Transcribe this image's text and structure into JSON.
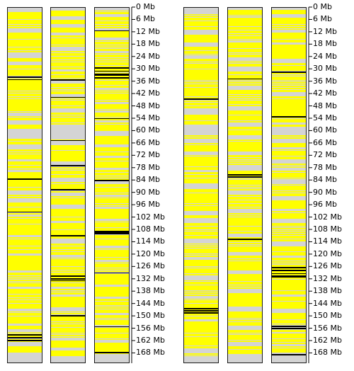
{
  "scale": {
    "unit": "Mb",
    "max": 173,
    "labels": [
      "0 Mb",
      "6 Mb",
      "12 Mb",
      "18 Mb",
      "24 Mb",
      "30 Mb",
      "36 Mb",
      "42 Mb",
      "48 Mb",
      "54 Mb",
      "60 Mb",
      "66 Mb",
      "72 Mb",
      "78 Mb",
      "84 Mb",
      "90 Mb",
      "96 Mb",
      "102 Mb",
      "108 Mb",
      "114 Mb",
      "120 Mb",
      "126 Mb",
      "132 Mb",
      "138 Mb",
      "144 Mb",
      "150 Mb",
      "156 Mb",
      "162 Mb",
      "168 Mb"
    ],
    "positions_mb": [
      0,
      6,
      12,
      18,
      24,
      30,
      36,
      42,
      48,
      54,
      60,
      66,
      72,
      78,
      84,
      90,
      96,
      102,
      108,
      114,
      120,
      126,
      132,
      138,
      144,
      150,
      156,
      162,
      168
    ]
  },
  "colors": {
    "present": "#ffff00",
    "absent": "#d4d4d4",
    "marker": "#000000",
    "border": "#1a1a1a"
  },
  "groups": [
    {
      "tracks": [
        {
          "gray": [
            [
              0,
              2
            ],
            [
              10,
              12
            ],
            [
              22,
              24.5
            ],
            [
              26.5,
              28
            ],
            [
              51,
              53
            ],
            [
              55,
              57
            ],
            [
              59,
              64
            ],
            [
              67,
              69
            ],
            [
              74,
              75
            ],
            [
              79,
              80
            ],
            [
              89,
              91
            ],
            [
              93,
              95
            ],
            [
              101,
              102
            ],
            [
              111,
              112
            ],
            [
              120,
              121
            ],
            [
              128,
              129
            ],
            [
              136,
              137
            ],
            [
              147,
              148
            ],
            [
              154,
              155
            ],
            [
              157,
              158
            ],
            [
              163,
              165
            ],
            [
              168,
              173
            ]
          ],
          "black": [
            [
              33.5,
              34
            ],
            [
              34.8,
              35.3
            ],
            [
              83.3,
              84
            ],
            [
              99.3,
              99.8
            ],
            [
              159.2,
              159.6
            ],
            [
              160.5,
              161.3
            ],
            [
              162,
              162.4
            ]
          ]
        },
        {
          "gray": [
            [
              0,
              1.5
            ],
            [
              4,
              5.5
            ],
            [
              8,
              9.5
            ],
            [
              12,
              13.5
            ],
            [
              19,
              21
            ],
            [
              30,
              31
            ],
            [
              35,
              37
            ],
            [
              42,
              44
            ],
            [
              49,
              51
            ],
            [
              57,
              64
            ],
            [
              65,
              67
            ],
            [
              75,
              77
            ],
            [
              83,
              85
            ],
            [
              90,
              92
            ],
            [
              96,
              98
            ],
            [
              104,
              105
            ],
            [
              113,
              115
            ],
            [
              121,
              122
            ],
            [
              136,
              137
            ],
            [
              140,
              141
            ],
            [
              146,
              148
            ],
            [
              161,
              162
            ],
            [
              166,
              167
            ],
            [
              170,
              173
            ]
          ],
          "black": [
            [
              35,
              35.4
            ],
            [
              43.5,
              44
            ],
            [
              64.5,
              65
            ],
            [
              76.8,
              77.4
            ],
            [
              88.5,
              89
            ],
            [
              111,
              111.6
            ],
            [
              130.5,
              131.2
            ],
            [
              131.8,
              132.5
            ],
            [
              132.8,
              133.4
            ],
            [
              150,
              150.6
            ]
          ]
        },
        {
          "gray": [
            [
              0,
              1
            ],
            [
              3,
              4.5
            ],
            [
              10,
              11.5
            ],
            [
              15,
              16
            ],
            [
              21,
              22
            ],
            [
              39,
              40
            ],
            [
              46,
              47
            ],
            [
              50,
              51
            ],
            [
              55,
              56
            ],
            [
              60,
              62
            ],
            [
              67,
              68
            ],
            [
              72,
              73
            ],
            [
              78,
              79
            ],
            [
              85,
              86
            ],
            [
              91,
              92
            ],
            [
              97,
              98
            ],
            [
              103,
              104
            ],
            [
              110,
              111
            ],
            [
              116,
              117
            ],
            [
              123,
              124
            ],
            [
              135,
              136
            ],
            [
              141,
              142
            ],
            [
              149,
              150
            ],
            [
              155,
              156
            ],
            [
              162,
              163
            ],
            [
              169,
              173
            ]
          ],
          "black": [
            [
              11,
              11.4
            ],
            [
              29,
              29.6
            ],
            [
              30.6,
              31.2
            ],
            [
              32,
              33
            ],
            [
              34,
              34.6
            ],
            [
              53.8,
              54.2
            ],
            [
              84,
              84.5
            ],
            [
              108.7,
              110.5
            ],
            [
              129,
              129.6
            ],
            [
              155.3,
              155.9
            ],
            [
              167.8,
              168.4
            ]
          ]
        }
      ]
    },
    {
      "tracks": [
        {
          "gray": [
            [
              0,
              3
            ],
            [
              11,
              13
            ],
            [
              17,
              19
            ],
            [
              23,
              25
            ],
            [
              49,
              52
            ],
            [
              57,
              62
            ],
            [
              64,
              66
            ],
            [
              70,
              72
            ],
            [
              79,
              80
            ],
            [
              86,
              88
            ],
            [
              99,
              101
            ],
            [
              103,
              105
            ],
            [
              113,
              115
            ],
            [
              122,
              123
            ],
            [
              131,
              133
            ],
            [
              141,
              142
            ],
            [
              152,
              153
            ],
            [
              166,
              168
            ],
            [
              170,
              173
            ]
          ],
          "black": [
            [
              44.2,
              44.8
            ],
            [
              146.5,
              147
            ],
            [
              147.5,
              148
            ],
            [
              148.5,
              149.2
            ]
          ]
        },
        {
          "gray": [
            [
              0,
              1
            ],
            [
              4,
              5
            ],
            [
              16,
              17
            ],
            [
              24,
              26
            ],
            [
              29,
              31
            ],
            [
              38,
              40
            ],
            [
              48,
              50
            ],
            [
              56,
              58
            ],
            [
              62,
              64
            ],
            [
              70,
              72
            ],
            [
              77,
              79
            ],
            [
              89,
              91
            ],
            [
              98,
              100
            ],
            [
              110,
              112
            ],
            [
              119,
              121
            ],
            [
              128,
              130
            ],
            [
              137,
              139
            ],
            [
              146,
              148
            ],
            [
              155,
              157
            ],
            [
              163,
              165
            ],
            [
              169,
              173
            ]
          ],
          "black": [
            [
              34.5,
              34.9
            ],
            [
              81.2,
              81.7
            ],
            [
              82.3,
              82.9
            ],
            [
              112.5,
              113.1
            ]
          ]
        },
        {
          "gray": [
            [
              0,
              1
            ],
            [
              3,
              5
            ],
            [
              11,
              12
            ],
            [
              17,
              18
            ],
            [
              25,
              27
            ],
            [
              41,
              43
            ],
            [
              56,
              57
            ],
            [
              58,
              62
            ],
            [
              64,
              66
            ],
            [
              68,
              69
            ],
            [
              74,
              76
            ],
            [
              78,
              79
            ],
            [
              84,
              86
            ],
            [
              92,
              94
            ],
            [
              98,
              99
            ],
            [
              103,
              105
            ],
            [
              114,
              116
            ],
            [
              121,
              122
            ],
            [
              140,
              141
            ],
            [
              147,
              149
            ],
            [
              158,
              159
            ],
            [
              164,
              165
            ],
            [
              168,
              173
            ]
          ],
          "black": [
            [
              31,
              31.7
            ],
            [
              53,
              53.5
            ],
            [
              126.3,
              127
            ],
            [
              127.6,
              128.6
            ],
            [
              129.4,
              130
            ],
            [
              130.6,
              131.4
            ],
            [
              155,
              155.7
            ],
            [
              156.2,
              156.8
            ],
            [
              169,
              169.6
            ]
          ]
        }
      ]
    }
  ]
}
